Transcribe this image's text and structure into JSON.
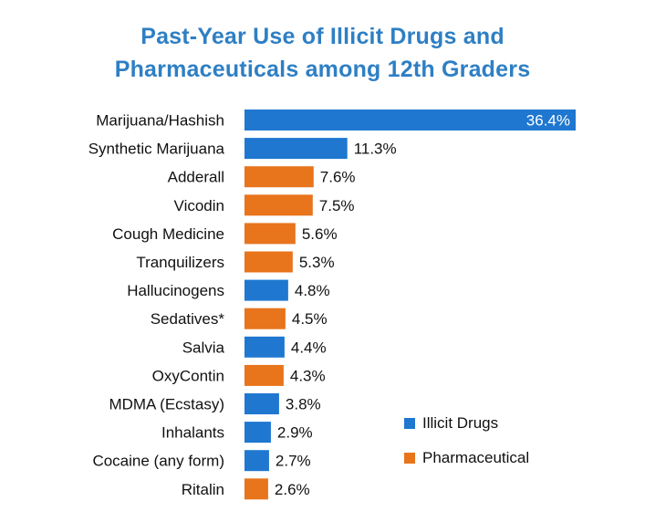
{
  "title_line1": "Past-Year Use of Illicit Drugs and",
  "title_line2": "Pharmaceuticals among 12th Graders",
  "colors": {
    "illicit": "#1f77d0",
    "pharmaceutical": "#e8741c",
    "title": "#2e7fc4"
  },
  "chart_data": {
    "type": "bar",
    "orientation": "horizontal",
    "title": "Past-Year Use of Illicit Drugs and Pharmaceuticals among 12th Graders",
    "categories": [
      "Marijuana/Hashish",
      "Synthetic Marijuana",
      "Adderall",
      "Vicodin",
      "Cough Medicine",
      "Tranquilizers",
      "Hallucinogens",
      "Sedatives*",
      "Salvia",
      "OxyContin",
      "MDMA (Ecstasy)",
      "Inhalants",
      "Cocaine (any form)",
      "Ritalin"
    ],
    "values": [
      36.4,
      11.3,
      7.6,
      7.5,
      5.6,
      5.3,
      4.8,
      4.5,
      4.4,
      4.3,
      3.8,
      2.9,
      2.7,
      2.6
    ],
    "value_labels": [
      "36.4%",
      "11.3%",
      "7.6%",
      "7.5%",
      "5.6%",
      "5.3%",
      "4.8%",
      "4.5%",
      "4.4%",
      "4.3%",
      "3.8%",
      "2.9%",
      "2.7%",
      "2.6%"
    ],
    "group": [
      "Illicit Drugs",
      "Illicit Drugs",
      "Pharmaceutical",
      "Pharmaceutical",
      "Pharmaceutical",
      "Pharmaceutical",
      "Illicit Drugs",
      "Pharmaceutical",
      "Illicit Drugs",
      "Pharmaceutical",
      "Illicit Drugs",
      "Illicit Drugs",
      "Illicit Drugs",
      "Pharmaceutical"
    ],
    "xlim": [
      0,
      36.4
    ],
    "grid": false,
    "axes_visible": false,
    "legend": {
      "placement": "bottom-right",
      "entries": [
        {
          "name": "Illicit Drugs",
          "color": "#1f77d0"
        },
        {
          "name": "Pharmaceutical",
          "color": "#e8741c"
        }
      ]
    }
  }
}
